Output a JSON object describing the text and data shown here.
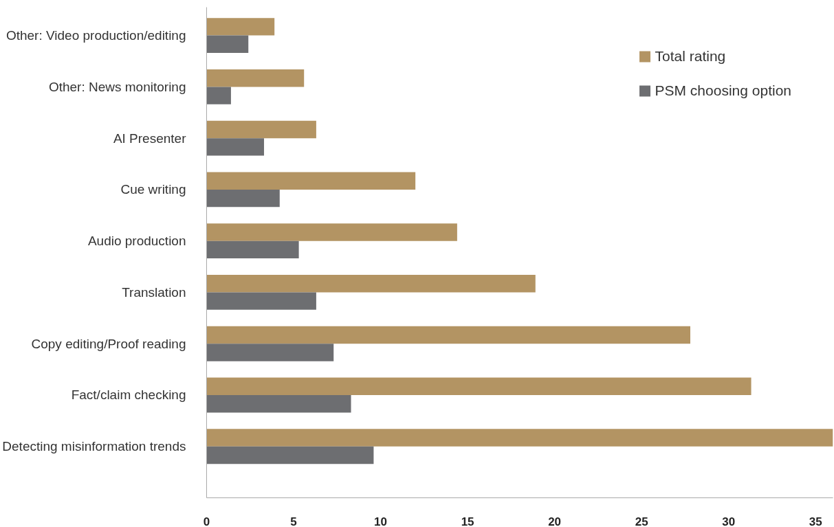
{
  "chart_data": {
    "type": "bar",
    "orientation": "horizontal",
    "categories": [
      "Other: Video production/editing",
      "Other: News monitoring",
      "AI Presenter",
      "Cue writing",
      "Audio production",
      "Translation",
      "Copy editing/Proof reading",
      "Fact/claim checking",
      "Detecting misinformation trends"
    ],
    "series": [
      {
        "name": "Total rating",
        "color": "#b39463",
        "values": [
          3.9,
          5.6,
          6.3,
          12.0,
          14.4,
          18.9,
          27.8,
          31.3,
          36
        ]
      },
      {
        "name": "PSM choosing option",
        "color": "#6d6e71",
        "values": [
          2.4,
          1.4,
          3.3,
          4.2,
          5.3,
          6.3,
          7.3,
          8.3,
          9.6
        ]
      }
    ],
    "xlim": [
      0,
      36
    ],
    "xticks": [
      0,
      5,
      10,
      15,
      20,
      25,
      30,
      35
    ],
    "grid": false,
    "legend": "top right"
  }
}
